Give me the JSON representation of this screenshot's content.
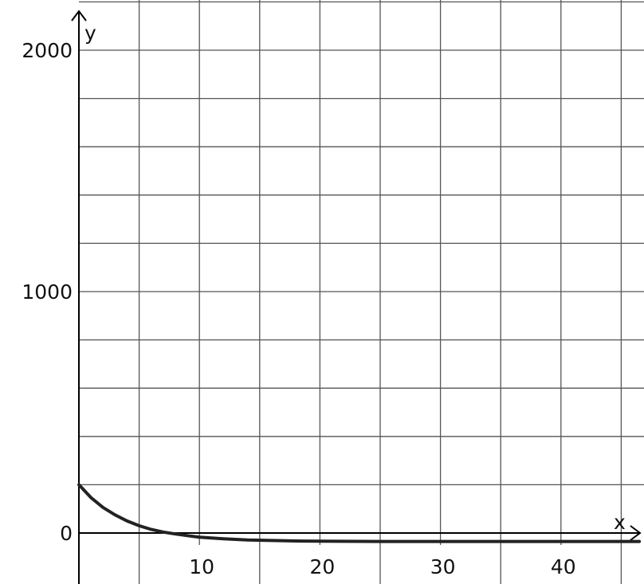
{
  "chart_data": {
    "type": "line",
    "title": "",
    "xlabel": "x",
    "ylabel": "y",
    "xlim": [
      0,
      46.5
    ],
    "ylim": [
      -210,
      2200
    ],
    "grid": true,
    "x_grid_step": 5,
    "y_grid_step": 200,
    "x_ticks": [
      10,
      20,
      30,
      40
    ],
    "x_tick_labels": [
      "10",
      "20",
      "30",
      "40"
    ],
    "y_ticks": [
      0,
      1000,
      2000
    ],
    "y_tick_labels": [
      "0",
      "1000",
      "2000"
    ],
    "series": [
      {
        "color": "#222222",
        "x": [
          0,
          1,
          2,
          3,
          4,
          5,
          6,
          7,
          8,
          9,
          10,
          12,
          14,
          16,
          18,
          20,
          25,
          30,
          35,
          40,
          46.5
        ],
        "y": [
          200,
          147,
          106,
          75,
          50,
          30,
          15,
          4,
          -4,
          -11,
          -17,
          -24,
          -29,
          -31,
          -33,
          -34,
          -35,
          -35,
          -35,
          -35,
          -35
        ]
      }
    ]
  }
}
